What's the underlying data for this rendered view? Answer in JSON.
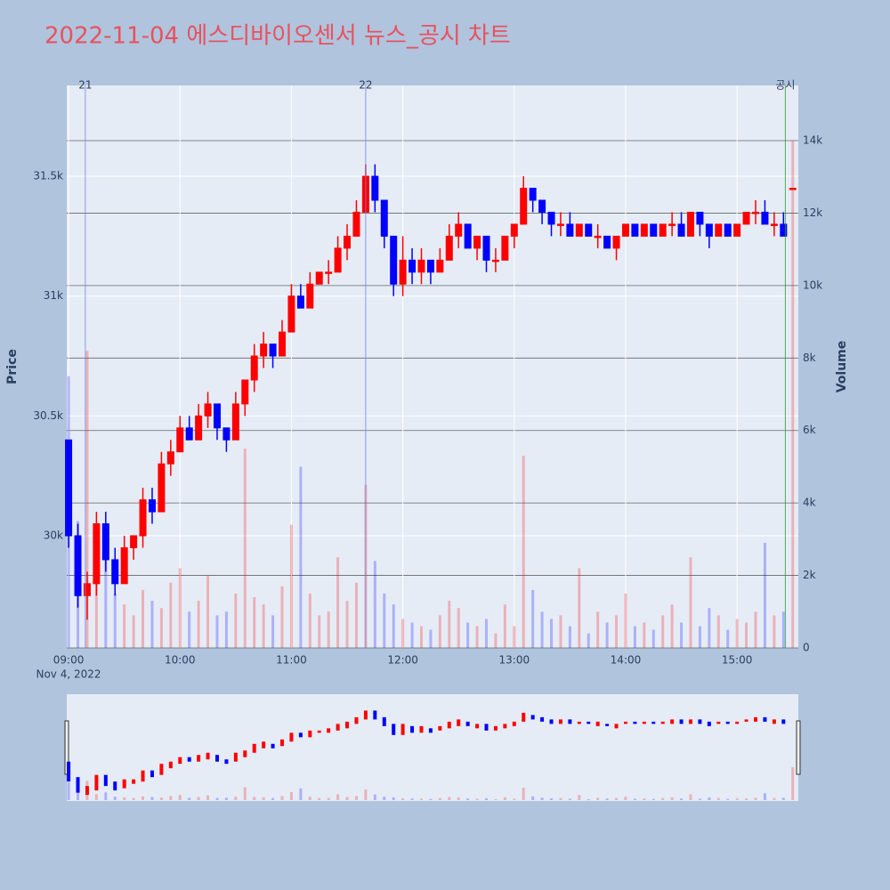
{
  "chart_data": {
    "type": "candlestick",
    "title": "2022-11-04 에스디바이오센서 뉴스_공시 차트",
    "y_label": "Price",
    "y2_label": "Volume",
    "x_date_label": "Nov 4, 2022",
    "increasing_color": "#ff0000",
    "decreasing_color": "#0000ff",
    "x": [
      "09:00",
      "09:05",
      "09:10",
      "09:15",
      "09:20",
      "09:25",
      "09:30",
      "09:35",
      "09:40",
      "09:45",
      "09:50",
      "09:55",
      "10:00",
      "10:05",
      "10:10",
      "10:15",
      "10:20",
      "10:25",
      "10:30",
      "10:35",
      "10:40",
      "10:45",
      "10:50",
      "10:55",
      "11:00",
      "11:05",
      "11:10",
      "11:15",
      "11:20",
      "11:25",
      "11:30",
      "11:35",
      "11:40",
      "11:45",
      "11:50",
      "11:55",
      "12:00",
      "12:05",
      "12:10",
      "12:15",
      "12:20",
      "12:25",
      "12:30",
      "12:35",
      "12:40",
      "12:45",
      "12:50",
      "12:55",
      "13:00",
      "13:05",
      "13:10",
      "13:15",
      "13:20",
      "13:25",
      "13:30",
      "13:35",
      "13:40",
      "13:45",
      "13:50",
      "13:55",
      "14:00",
      "14:05",
      "14:10",
      "14:15",
      "14:20",
      "14:25",
      "14:30",
      "14:35",
      "14:40",
      "14:45",
      "14:50",
      "14:55",
      "15:00",
      "15:05",
      "15:10",
      "15:15",
      "15:20",
      "15:25",
      "15:30"
    ],
    "open": [
      30400,
      30000,
      29750,
      29800,
      30050,
      29900,
      29800,
      29950,
      30000,
      30150,
      30100,
      30300,
      30350,
      30450,
      30400,
      30500,
      30550,
      30450,
      30400,
      30550,
      30650,
      30750,
      30800,
      30750,
      30850,
      31000,
      30950,
      31050,
      31100,
      31100,
      31200,
      31250,
      31350,
      31500,
      31400,
      31250,
      31050,
      31150,
      31100,
      31150,
      31100,
      31150,
      31250,
      31300,
      31200,
      31250,
      31150,
      31150,
      31250,
      31300,
      31450,
      31400,
      31350,
      31300,
      31300,
      31250,
      31300,
      31250,
      31250,
      31200,
      31250,
      31300,
      31250,
      31300,
      31250,
      31300,
      31300,
      31250,
      31350,
      31300,
      31250,
      31300,
      31250,
      31300,
      31350,
      31350,
      31300,
      31300,
      31450
    ],
    "high": [
      30400,
      30050,
      29850,
      30100,
      30100,
      29950,
      30000,
      30000,
      30200,
      30200,
      30350,
      30400,
      30500,
      30500,
      30550,
      30600,
      30550,
      30450,
      30600,
      30650,
      30800,
      30850,
      30800,
      30900,
      31050,
      31050,
      31100,
      31100,
      31150,
      31250,
      31300,
      31400,
      31550,
      31550,
      31400,
      31250,
      31250,
      31200,
      31200,
      31150,
      31200,
      31300,
      31350,
      31300,
      31250,
      31250,
      31200,
      31250,
      31300,
      31500,
      31450,
      31400,
      31350,
      31350,
      31350,
      31300,
      31300,
      31300,
      31250,
      31250,
      31300,
      31300,
      31300,
      31300,
      31300,
      31350,
      31350,
      31350,
      31350,
      31300,
      31300,
      31300,
      31300,
      31350,
      31400,
      31400,
      31350,
      31350,
      31450
    ],
    "low": [
      29950,
      29700,
      29650,
      29750,
      29850,
      29750,
      29800,
      29900,
      29950,
      30050,
      30100,
      30250,
      30350,
      30400,
      30400,
      30450,
      30400,
      30350,
      30400,
      30500,
      30600,
      30700,
      30700,
      30750,
      30850,
      30950,
      30950,
      31050,
      31050,
      31100,
      31150,
      31250,
      31350,
      31350,
      31200,
      31000,
      31000,
      31050,
      31050,
      31050,
      31100,
      31150,
      31200,
      31200,
      31150,
      31100,
      31100,
      31150,
      31200,
      31300,
      31350,
      31300,
      31250,
      31250,
      31250,
      31250,
      31250,
      31200,
      31200,
      31150,
      31250,
      31250,
      31250,
      31250,
      31250,
      31250,
      31250,
      31250,
      31250,
      31200,
      31250,
      31250,
      31250,
      31300,
      31300,
      31300,
      31250,
      31250,
      31450
    ],
    "close": [
      30000,
      29750,
      29800,
      30050,
      29900,
      29800,
      29950,
      30000,
      30150,
      30100,
      30300,
      30350,
      30450,
      30400,
      30500,
      30550,
      30450,
      30400,
      30550,
      30650,
      30750,
      30800,
      30750,
      30850,
      31000,
      30950,
      31050,
      31100,
      31100,
      31200,
      31250,
      31350,
      31500,
      31400,
      31250,
      31050,
      31150,
      31100,
      31150,
      31100,
      31150,
      31250,
      31300,
      31200,
      31250,
      31150,
      31150,
      31250,
      31300,
      31450,
      31400,
      31350,
      31300,
      31300,
      31250,
      31300,
      31250,
      31250,
      31200,
      31250,
      31300,
      31250,
      31300,
      31250,
      31300,
      31300,
      31250,
      31350,
      31300,
      31250,
      31300,
      31250,
      31300,
      31350,
      31350,
      31300,
      31300,
      31250,
      31450
    ],
    "volume": [
      7500,
      3500,
      8200,
      2500,
      3300,
      1500,
      1200,
      900,
      1600,
      1300,
      1100,
      1800,
      2200,
      1000,
      1300,
      2000,
      900,
      1000,
      1500,
      5500,
      1400,
      1200,
      900,
      1700,
      3400,
      5000,
      1500,
      900,
      1000,
      2500,
      1300,
      1800,
      4500,
      2400,
      1500,
      1200,
      800,
      700,
      600,
      500,
      900,
      1300,
      1100,
      700,
      600,
      800,
      400,
      1200,
      600,
      5300,
      1600,
      1000,
      800,
      900,
      600,
      2200,
      400,
      1000,
      700,
      900,
      1500,
      600,
      700,
      500,
      900,
      1200,
      700,
      2500,
      600,
      1100,
      900,
      500,
      800,
      700,
      1000,
      2900,
      900,
      1000,
      14000
    ],
    "annotations": [
      {
        "x": "09:09",
        "text": "21",
        "color": "#6f86e8"
      },
      {
        "x": "11:40",
        "text": "22",
        "color": "#6f86e8"
      },
      {
        "x": "15:26",
        "text": "공시",
        "color": "#2ca02c"
      }
    ],
    "xlim": [
      "08:59",
      "15:33"
    ],
    "xticks": [
      "09:00",
      "10:00",
      "11:00",
      "12:00",
      "13:00",
      "14:00",
      "15:00"
    ],
    "ylim": [
      29532,
      31879
    ],
    "yticks": [
      {
        "value": 30000,
        "label": "30k"
      },
      {
        "value": 30500,
        "label": "30.5k"
      },
      {
        "value": 31000,
        "label": "31k"
      },
      {
        "value": 31500,
        "label": "31.5k"
      }
    ],
    "y2lim": [
      0,
      15523
    ],
    "y2ticks": [
      0,
      {
        "value": 2000,
        "label": "2k"
      },
      {
        "value": 4000,
        "label": "4k"
      },
      {
        "value": 6000,
        "label": "6k"
      },
      {
        "value": 8000,
        "label": "8k"
      },
      {
        "value": 10000,
        "label": "10k"
      },
      {
        "value": 12000,
        "label": "12k"
      },
      {
        "value": 14000,
        "label": "14k"
      }
    ],
    "grid": true
  }
}
